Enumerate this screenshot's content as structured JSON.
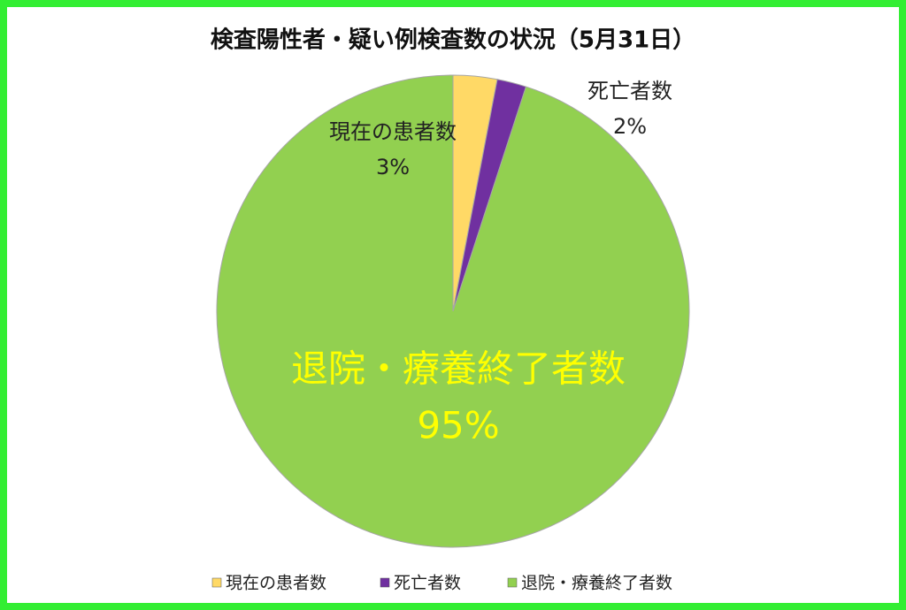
{
  "chart_data": {
    "type": "pie",
    "title": "検査陽性者・疑い例検査数の状況（5月31日）",
    "categories": [
      "現在の患者数",
      "死亡者数",
      "退院・療養終了者数"
    ],
    "values": [
      3,
      2,
      95
    ],
    "value_labels": [
      "3%",
      "2%",
      "95%"
    ],
    "colors": [
      "#ffd966",
      "#7030a0",
      "#92d050"
    ],
    "legend": "bottom"
  }
}
